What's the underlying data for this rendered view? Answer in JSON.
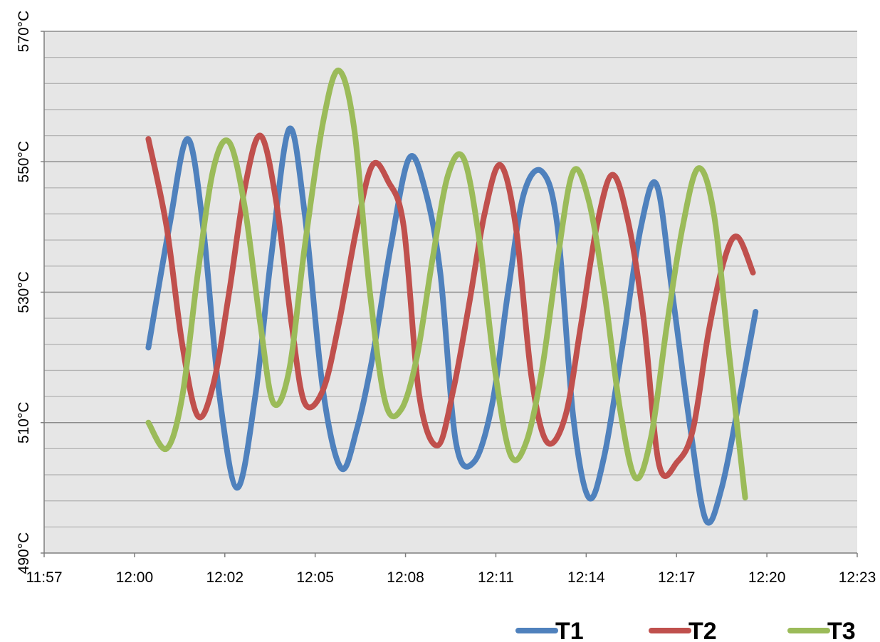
{
  "chart_data": {
    "type": "line",
    "title": "",
    "xlabel": "",
    "ylabel": "",
    "x_ticks": [
      "11:57",
      "12:00",
      "12:02",
      "12:05",
      "12:08",
      "12:11",
      "12:14",
      "12:17",
      "12:20",
      "12:23"
    ],
    "y_ticks": [
      {
        "value": 490,
        "label": "490°C"
      },
      {
        "value": 510,
        "label": "510°C"
      },
      {
        "value": 530,
        "label": "530°C"
      },
      {
        "value": 550,
        "label": "550°C"
      },
      {
        "value": 570,
        "label": "570°C"
      }
    ],
    "ylim": [
      490,
      570
    ],
    "minor_gridline_step": 4,
    "grid": true,
    "legend_position": "bottom-right",
    "series": [
      {
        "name": "T1",
        "color": "#4F81BD",
        "points": [
          [
            "12:00:20",
            521.5
          ],
          [
            "12:01:00",
            540
          ],
          [
            "12:01:35",
            553.5
          ],
          [
            "12:02:05",
            540
          ],
          [
            "12:02:35",
            515
          ],
          [
            "12:03:10",
            500
          ],
          [
            "12:03:45",
            514
          ],
          [
            "12:04:15",
            535
          ],
          [
            "12:04:50",
            555
          ],
          [
            "12:05:20",
            542
          ],
          [
            "12:05:55",
            515
          ],
          [
            "12:06:30",
            503
          ],
          [
            "12:07:00",
            509
          ],
          [
            "12:07:30",
            520
          ],
          [
            "12:08:05",
            537
          ],
          [
            "12:08:40",
            550.5
          ],
          [
            "12:09:10",
            546
          ],
          [
            "12:09:40",
            533
          ],
          [
            "12:10:10",
            507
          ],
          [
            "12:10:45",
            504
          ],
          [
            "12:11:20",
            513
          ],
          [
            "12:11:50",
            530
          ],
          [
            "12:12:20",
            545
          ],
          [
            "12:12:55",
            548.5
          ],
          [
            "12:13:25",
            540
          ],
          [
            "12:13:55",
            511
          ],
          [
            "12:14:25",
            498.5
          ],
          [
            "12:14:55",
            505
          ],
          [
            "12:15:30",
            522
          ],
          [
            "12:16:05",
            540
          ],
          [
            "12:16:35",
            546.5
          ],
          [
            "12:17:05",
            530
          ],
          [
            "12:17:40",
            509
          ],
          [
            "12:18:10",
            495
          ],
          [
            "12:18:40",
            500
          ],
          [
            "12:19:15",
            514
          ],
          [
            "12:19:45",
            527
          ]
        ]
      },
      {
        "name": "T2",
        "color": "#C0504D",
        "points": [
          [
            "12:00:20",
            553.5
          ],
          [
            "12:00:55",
            540
          ],
          [
            "12:01:25",
            522
          ],
          [
            "12:01:55",
            511
          ],
          [
            "12:02:25",
            516
          ],
          [
            "12:02:55",
            530
          ],
          [
            "12:03:25",
            546
          ],
          [
            "12:03:55",
            554
          ],
          [
            "12:04:25",
            544
          ],
          [
            "12:04:55",
            525
          ],
          [
            "12:05:20",
            513
          ],
          [
            "12:05:55",
            515
          ],
          [
            "12:06:25",
            525
          ],
          [
            "12:07:00",
            540
          ],
          [
            "12:07:30",
            549.5
          ],
          [
            "12:08:00",
            547
          ],
          [
            "12:08:30",
            540
          ],
          [
            "12:09:00",
            514
          ],
          [
            "12:09:35",
            506.5
          ],
          [
            "12:10:05",
            515
          ],
          [
            "12:10:35",
            528
          ],
          [
            "12:11:05",
            542
          ],
          [
            "12:11:35",
            549.5
          ],
          [
            "12:12:05",
            540
          ],
          [
            "12:12:35",
            517
          ],
          [
            "12:13:05",
            507
          ],
          [
            "12:13:40",
            511
          ],
          [
            "12:14:10",
            525
          ],
          [
            "12:14:40",
            540
          ],
          [
            "12:15:10",
            548
          ],
          [
            "12:15:40",
            541
          ],
          [
            "12:16:10",
            526
          ],
          [
            "12:16:40",
            503.5
          ],
          [
            "12:17:15",
            504
          ],
          [
            "12:17:45",
            509
          ],
          [
            "12:18:15",
            524
          ],
          [
            "12:18:45",
            535
          ],
          [
            "12:19:10",
            538.5
          ],
          [
            "12:19:40",
            533
          ]
        ]
      },
      {
        "name": "T3",
        "color": "#9BBB59",
        "points": [
          [
            "12:00:20",
            510
          ],
          [
            "12:00:55",
            506
          ],
          [
            "12:01:25",
            514
          ],
          [
            "12:01:55",
            533
          ],
          [
            "12:02:25",
            549
          ],
          [
            "12:02:55",
            553
          ],
          [
            "12:03:25",
            543
          ],
          [
            "12:03:55",
            525
          ],
          [
            "12:04:20",
            513
          ],
          [
            "12:04:50",
            518
          ],
          [
            "12:05:20",
            537
          ],
          [
            "12:05:55",
            556
          ],
          [
            "12:06:25",
            564
          ],
          [
            "12:06:55",
            555
          ],
          [
            "12:07:25",
            530
          ],
          [
            "12:07:55",
            513
          ],
          [
            "12:08:25",
            512
          ],
          [
            "12:08:55",
            520
          ],
          [
            "12:09:25",
            535
          ],
          [
            "12:09:55",
            548
          ],
          [
            "12:10:25",
            550.5
          ],
          [
            "12:10:55",
            538
          ],
          [
            "12:11:25",
            518
          ],
          [
            "12:11:55",
            505
          ],
          [
            "12:12:25",
            507
          ],
          [
            "12:12:55",
            518
          ],
          [
            "12:13:25",
            535
          ],
          [
            "12:13:55",
            548.5
          ],
          [
            "12:14:25",
            544
          ],
          [
            "12:14:55",
            530
          ],
          [
            "12:15:25",
            512
          ],
          [
            "12:15:55",
            501.5
          ],
          [
            "12:16:25",
            508
          ],
          [
            "12:16:55",
            525
          ],
          [
            "12:17:25",
            540
          ],
          [
            "12:17:55",
            549
          ],
          [
            "12:18:25",
            542
          ],
          [
            "12:18:55",
            520
          ],
          [
            "12:19:25",
            498.5
          ]
        ]
      }
    ]
  }
}
